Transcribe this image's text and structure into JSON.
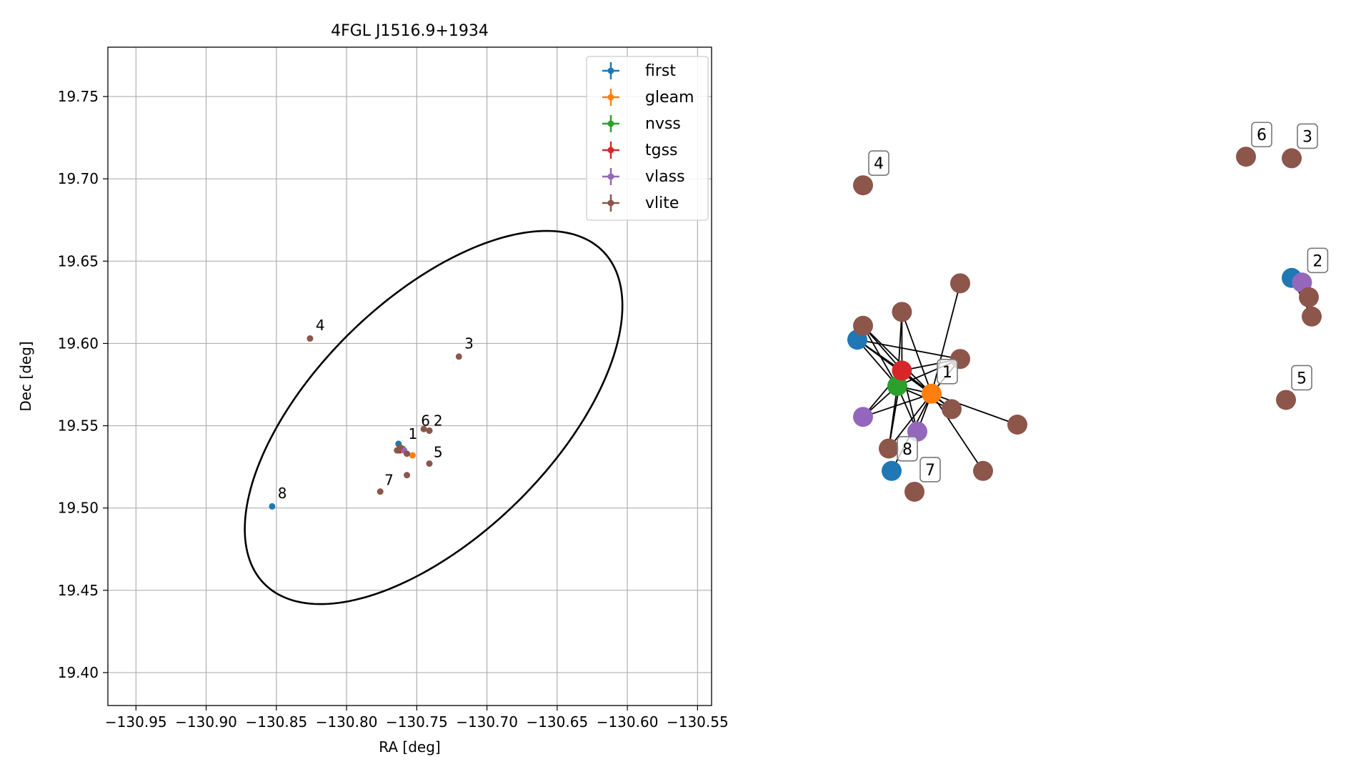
{
  "chart_data": [
    {
      "type": "scatter",
      "title": "4FGL J1516.9+1934",
      "xlabel": "RA [deg]",
      "ylabel": "Dec [deg]",
      "xlim": [
        -130.97,
        -130.54
      ],
      "ylim": [
        19.38,
        19.78
      ],
      "xticks": [
        -130.95,
        -130.9,
        -130.85,
        -130.8,
        -130.75,
        -130.7,
        -130.65,
        -130.6,
        -130.55
      ],
      "xtick_labels": [
        "−130.95",
        "−130.90",
        "−130.85",
        "−130.80",
        "−130.75",
        "−130.70",
        "−130.65",
        "−130.60",
        "−130.55"
      ],
      "yticks": [
        19.4,
        19.45,
        19.5,
        19.55,
        19.6,
        19.65,
        19.7,
        19.75
      ],
      "ytick_labels": [
        "19.40",
        "19.45",
        "19.50",
        "19.55",
        "19.60",
        "19.65",
        "19.70",
        "19.75"
      ],
      "grid": true,
      "legend_position": "top-right",
      "colors": {
        "first": "#1f77b4",
        "gleam": "#ff7f0e",
        "nvss": "#2ca02c",
        "tgss": "#d62728",
        "vlass": "#9467bd",
        "vlite": "#8c564b"
      },
      "series": [
        {
          "name": "first",
          "points": [
            [
              -130.763,
              19.539
            ],
            [
              -130.853,
              19.501
            ]
          ]
        },
        {
          "name": "gleam",
          "points": [
            [
              -130.753,
              19.532
            ]
          ]
        },
        {
          "name": "nvss",
          "points": [
            [
              -130.76,
              19.536
            ]
          ]
        },
        {
          "name": "tgss",
          "points": [
            [
              -130.762,
              19.535
            ]
          ]
        },
        {
          "name": "vlass",
          "points": [
            [
              -130.759,
              19.535
            ],
            [
              -130.741,
              19.547
            ]
          ]
        },
        {
          "name": "vlite",
          "points": [
            [
              -130.764,
              19.535
            ],
            [
              -130.757,
              19.533
            ],
            [
              -130.762,
              19.537
            ],
            [
              -130.757,
              19.52
            ],
            [
              -130.741,
              19.527
            ],
            [
              -130.745,
              19.548
            ],
            [
              -130.741,
              19.547
            ],
            [
              -130.826,
              19.603
            ],
            [
              -130.72,
              19.592
            ],
            [
              -130.776,
              19.51
            ]
          ]
        }
      ],
      "error_ellipse": {
        "center": [
          -130.738,
          19.555
        ],
        "semi_major": 0.158,
        "semi_minor": 0.0773,
        "angle_deg": 37
      },
      "annotations": [
        {
          "label": "1",
          "x": -130.756,
          "y": 19.542
        },
        {
          "label": "2",
          "x": -130.738,
          "y": 19.55
        },
        {
          "label": "3",
          "x": -130.716,
          "y": 19.597
        },
        {
          "label": "4",
          "x": -130.822,
          "y": 19.608
        },
        {
          "label": "5",
          "x": -130.738,
          "y": 19.531
        },
        {
          "label": "6",
          "x": -130.747,
          "y": 19.55
        },
        {
          "label": "7",
          "x": -130.773,
          "y": 19.514
        },
        {
          "label": "8",
          "x": -130.849,
          "y": 19.506
        }
      ]
    },
    {
      "type": "network",
      "nodes": [
        {
          "id": "f1",
          "color": "first",
          "x": 0.1,
          "y": 0.56
        },
        {
          "id": "f2",
          "color": "first",
          "x": 0.16,
          "y": 0.39
        },
        {
          "id": "f3",
          "color": "first",
          "x": 0.86,
          "y": 0.64
        },
        {
          "id": "g1",
          "color": "gleam",
          "x": 0.23,
          "y": 0.49
        },
        {
          "id": "n1",
          "color": "nvss",
          "x": 0.17,
          "y": 0.5
        },
        {
          "id": "t1",
          "color": "tgss",
          "x": 0.178,
          "y": 0.52
        },
        {
          "id": "v1",
          "color": "vlass",
          "x": 0.11,
          "y": 0.46
        },
        {
          "id": "v2",
          "color": "vlass",
          "x": 0.205,
          "y": 0.441
        },
        {
          "id": "v3",
          "color": "vlass",
          "x": 0.878,
          "y": 0.634
        },
        {
          "id": "w1",
          "color": "vlite",
          "x": 0.11,
          "y": 0.578
        },
        {
          "id": "w2",
          "color": "vlite",
          "x": 0.178,
          "y": 0.596
        },
        {
          "id": "w3",
          "color": "vlite",
          "x": 0.28,
          "y": 0.633
        },
        {
          "id": "w4",
          "color": "vlite",
          "x": 0.28,
          "y": 0.535
        },
        {
          "id": "w5",
          "color": "vlite",
          "x": 0.265,
          "y": 0.47
        },
        {
          "id": "w6",
          "color": "vlite",
          "x": 0.38,
          "y": 0.45
        },
        {
          "id": "w7",
          "color": "vlite",
          "x": 0.155,
          "y": 0.419
        },
        {
          "id": "w8",
          "color": "vlite",
          "x": 0.32,
          "y": 0.39
        },
        {
          "id": "w9",
          "color": "vlite",
          "x": 0.89,
          "y": 0.615
        },
        {
          "id": "w10",
          "color": "vlite",
          "x": 0.895,
          "y": 0.59
        },
        {
          "id": "w11",
          "color": "vlite",
          "x": 0.11,
          "y": 0.76
        },
        {
          "id": "w12",
          "color": "vlite",
          "x": 0.86,
          "y": 0.795
        },
        {
          "id": "w13",
          "color": "vlite",
          "x": 0.78,
          "y": 0.797
        },
        {
          "id": "w14",
          "color": "vlite",
          "x": 0.85,
          "y": 0.482
        },
        {
          "id": "w15",
          "color": "vlite",
          "x": 0.2,
          "y": 0.363
        }
      ],
      "edges": [
        [
          "f1",
          "g1"
        ],
        [
          "f1",
          "n1"
        ],
        [
          "f1",
          "t1"
        ],
        [
          "f1",
          "w4"
        ],
        [
          "f1",
          "w5"
        ],
        [
          "f2",
          "g1"
        ],
        [
          "g1",
          "n1"
        ],
        [
          "g1",
          "t1"
        ],
        [
          "g1",
          "v1"
        ],
        [
          "g1",
          "v2"
        ],
        [
          "g1",
          "w1"
        ],
        [
          "g1",
          "w2"
        ],
        [
          "g1",
          "w3"
        ],
        [
          "g1",
          "w4"
        ],
        [
          "g1",
          "w5"
        ],
        [
          "g1",
          "w6"
        ],
        [
          "g1",
          "w7"
        ],
        [
          "g1",
          "w8"
        ],
        [
          "n1",
          "t1"
        ],
        [
          "n1",
          "v1"
        ],
        [
          "n1",
          "v2"
        ],
        [
          "n1",
          "w1"
        ],
        [
          "n1",
          "w2"
        ],
        [
          "n1",
          "w4"
        ],
        [
          "n1",
          "w5"
        ],
        [
          "n1",
          "w7"
        ],
        [
          "t1",
          "v1"
        ],
        [
          "t1",
          "v2"
        ],
        [
          "t1",
          "w1"
        ],
        [
          "t1",
          "w2"
        ],
        [
          "t1",
          "w4"
        ],
        [
          "t1",
          "w5"
        ],
        [
          "t1",
          "w7"
        ],
        [
          "f3",
          "v3"
        ],
        [
          "f3",
          "w9"
        ],
        [
          "f3",
          "w10"
        ],
        [
          "v3",
          "w9"
        ],
        [
          "v3",
          "w10"
        ]
      ],
      "labels": [
        {
          "text": "1",
          "node": "g1"
        },
        {
          "text": "2",
          "node": "v3"
        },
        {
          "text": "3",
          "node": "w12"
        },
        {
          "text": "4",
          "node": "w11"
        },
        {
          "text": "5",
          "node": "w14"
        },
        {
          "text": "6",
          "node": "w13"
        },
        {
          "text": "7",
          "node": "w15"
        },
        {
          "text": "8",
          "node": "f2"
        }
      ]
    }
  ]
}
